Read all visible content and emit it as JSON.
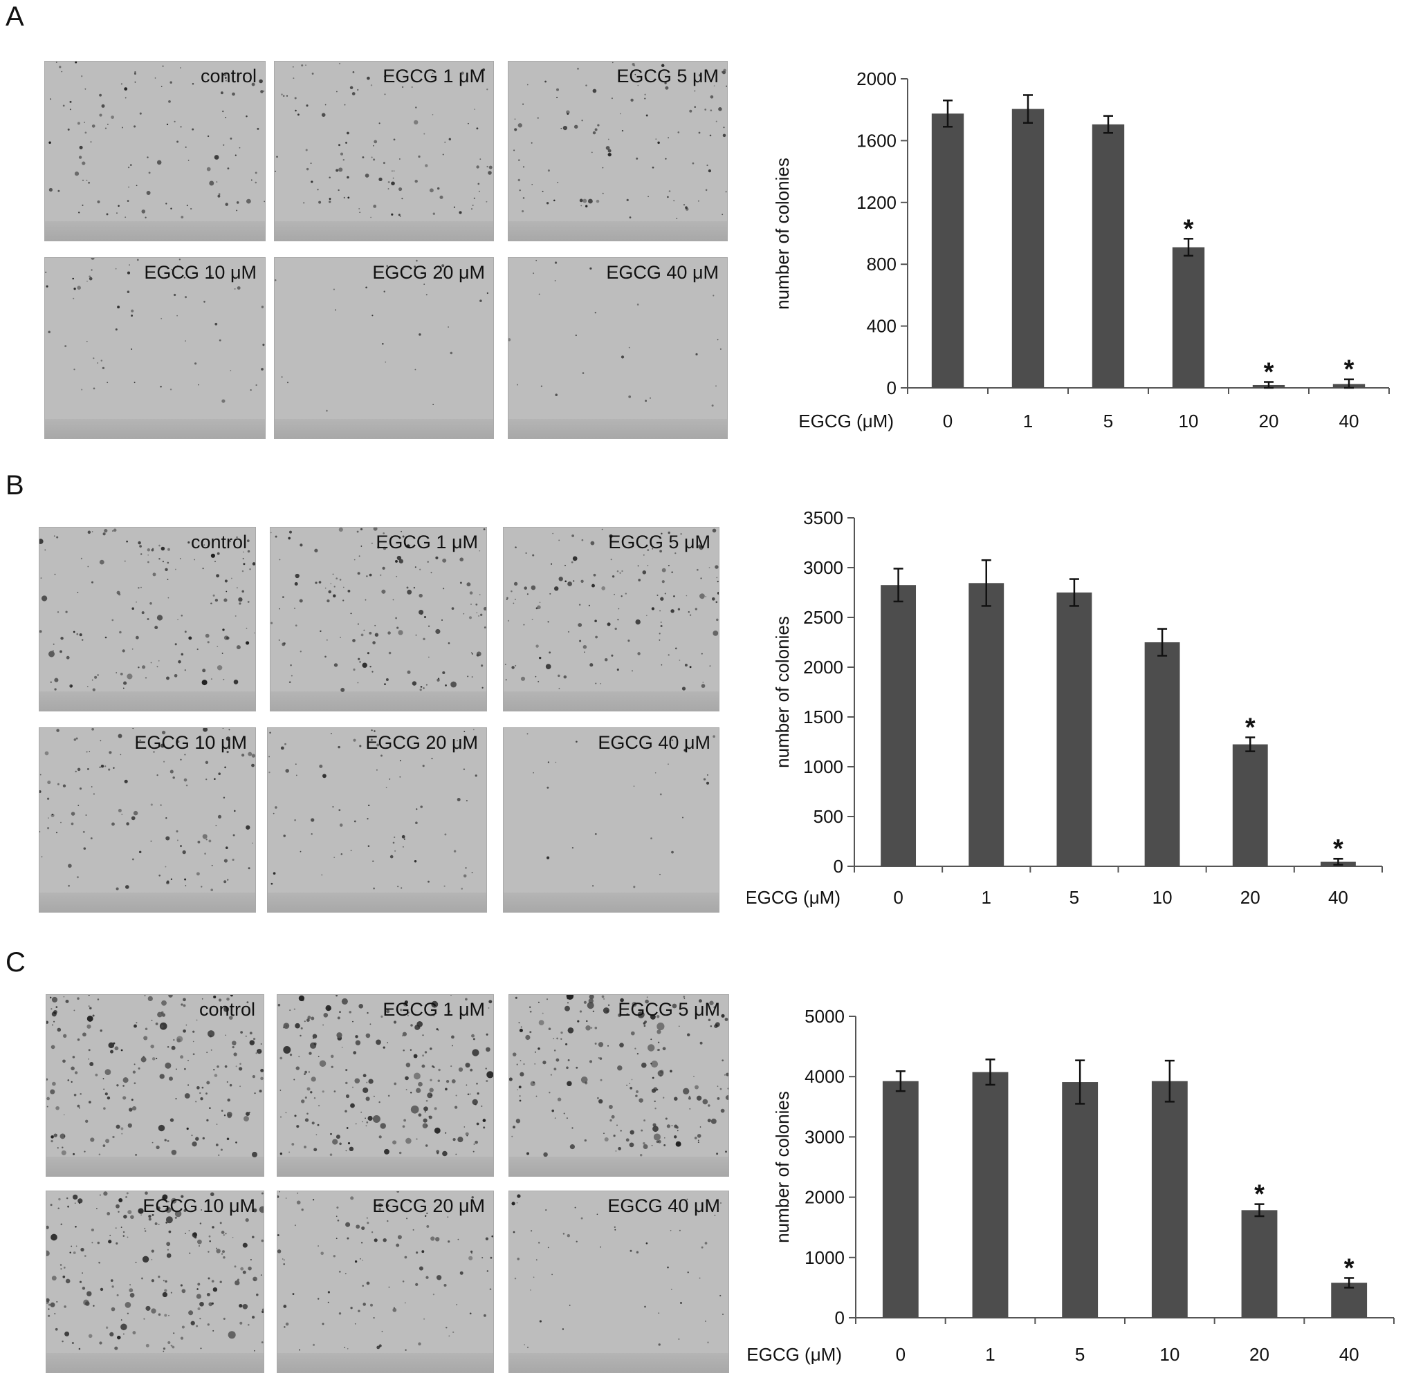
{
  "figure": {
    "panels": [
      {
        "letter": "A",
        "images": [
          {
            "label": "control",
            "colony_level": 0.35
          },
          {
            "label": "EGCG 1 μM",
            "colony_level": 0.35
          },
          {
            "label": "EGCG 5 μM",
            "colony_level": 0.33
          },
          {
            "label": "EGCG 10 μM",
            "colony_level": 0.15
          },
          {
            "label": "EGCG 20 μM",
            "colony_level": 0.02
          },
          {
            "label": "EGCG 40 μM",
            "colony_level": 0.02
          }
        ]
      },
      {
        "letter": "B",
        "images": [
          {
            "label": "control",
            "colony_level": 0.5
          },
          {
            "label": "EGCG 1 μM",
            "colony_level": 0.5
          },
          {
            "label": "EGCG 5 μM",
            "colony_level": 0.48
          },
          {
            "label": "EGCG 10 μM",
            "colony_level": 0.4
          },
          {
            "label": "EGCG 20 μM",
            "colony_level": 0.22
          },
          {
            "label": "EGCG 40 μM",
            "colony_level": 0.02
          }
        ]
      },
      {
        "letter": "C",
        "images": [
          {
            "label": "control",
            "colony_level": 0.75
          },
          {
            "label": "EGCG 1 μM",
            "colony_level": 0.8
          },
          {
            "label": "EGCG 5 μM",
            "colony_level": 0.75
          },
          {
            "label": "EGCG 10 μM",
            "colony_level": 0.78
          },
          {
            "label": "EGCG 20 μM",
            "colony_level": 0.35
          },
          {
            "label": "EGCG 40 μM",
            "colony_level": 0.12
          }
        ]
      }
    ]
  },
  "chart_data": [
    {
      "type": "bar",
      "panel": "A",
      "categories": [
        "0",
        "1",
        "5",
        "10",
        "20",
        "40"
      ],
      "values": [
        1775,
        1805,
        1705,
        910,
        18,
        25
      ],
      "errors": [
        85,
        90,
        55,
        55,
        20,
        30
      ],
      "significant": [
        false,
        false,
        false,
        true,
        true,
        true
      ],
      "significance_marker": "*",
      "xlabel": "EGCG (μM)",
      "ylabel": "number of colonies",
      "ylim": [
        0,
        2000
      ],
      "yticks": [
        "0",
        "400",
        "800",
        "1200",
        "1600",
        "2000"
      ],
      "bar_color": "#4d4d4d"
    },
    {
      "type": "bar",
      "panel": "B",
      "categories": [
        "0",
        "1",
        "5",
        "10",
        "20",
        "40"
      ],
      "values": [
        2825,
        2845,
        2750,
        2250,
        1225,
        45
      ],
      "errors": [
        165,
        230,
        135,
        135,
        70,
        30
      ],
      "significant": [
        false,
        false,
        false,
        false,
        true,
        true
      ],
      "significance_marker": "*",
      "xlabel": "EGCG (μM)",
      "ylabel": "number of colonies",
      "ylim": [
        0,
        3500
      ],
      "yticks": [
        "0",
        "500",
        "1000",
        "1500",
        "2000",
        "2500",
        "3000",
        "3500"
      ],
      "bar_color": "#4d4d4d"
    },
    {
      "type": "bar",
      "panel": "C",
      "categories": [
        "0",
        "1",
        "5",
        "10",
        "20",
        "40"
      ],
      "values": [
        3925,
        4075,
        3910,
        3925,
        1785,
        580
      ],
      "errors": [
        165,
        210,
        360,
        340,
        100,
        80
      ],
      "significant": [
        false,
        false,
        false,
        false,
        true,
        true
      ],
      "significance_marker": "*",
      "xlabel": "EGCG (μM)",
      "ylabel": "number of colonies",
      "ylim": [
        0,
        5000
      ],
      "yticks": [
        "0",
        "1000",
        "2000",
        "3000",
        "4000",
        "5000"
      ],
      "bar_color": "#4d4d4d"
    }
  ]
}
